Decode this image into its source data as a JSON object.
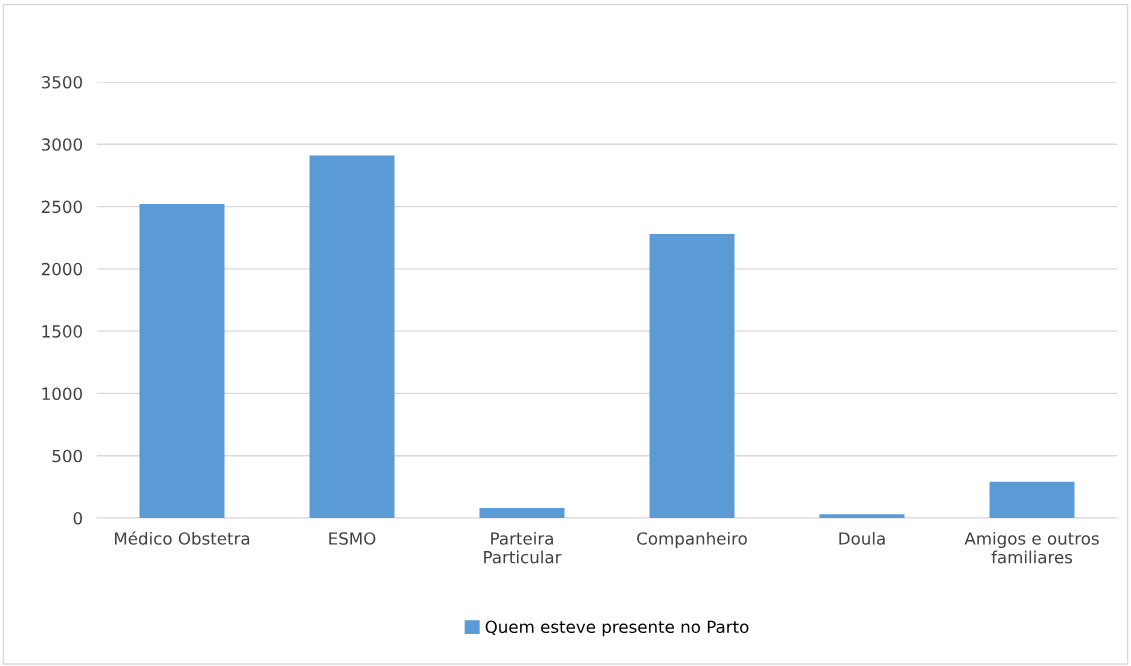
{
  "chart_data": {
    "type": "bar",
    "categories": [
      "Médico Obstetra",
      "ESMO",
      "Parteira\nParticular",
      "Companheiro",
      "Doula",
      "Amigos e outros\nfamiliares"
    ],
    "series": [
      {
        "name": "Quem esteve presente no Parto",
        "color": "#5b9bd5",
        "values": [
          2520,
          2910,
          80,
          2280,
          30,
          290
        ]
      }
    ],
    "ylim": [
      0,
      3500
    ],
    "yticks": [
      0,
      500,
      1000,
      1500,
      2000,
      2500,
      3000,
      3500
    ],
    "grid": "y",
    "legend": "bottom"
  }
}
